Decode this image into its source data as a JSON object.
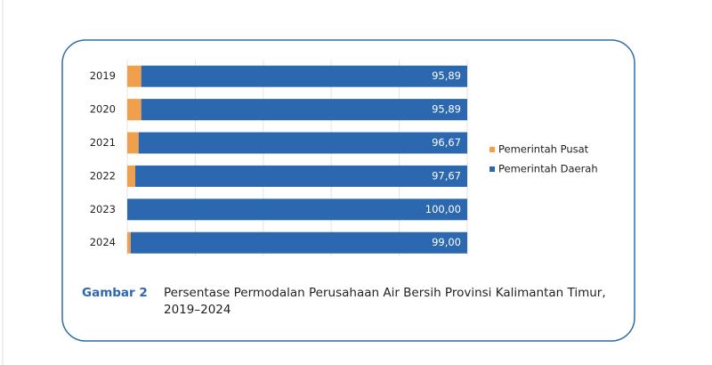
{
  "chart_data": {
    "type": "stacked_barh",
    "categories": [
      "2019",
      "2020",
      "2021",
      "2022",
      "2023",
      "2024"
    ],
    "series": [
      {
        "name": "Pemerintah Pusat",
        "color": "#f0a04b",
        "values": [
          4.11,
          4.11,
          3.33,
          2.33,
          0,
          1.0
        ]
      },
      {
        "name": "Pemerintah Daerah",
        "color": "#2b68b0",
        "values": [
          95.89,
          95.89,
          96.67,
          97.67,
          100.0,
          99.0
        ],
        "value_labels": [
          "95,89",
          "95,89",
          "96,67",
          "97,67",
          "100,00",
          "99,00"
        ]
      }
    ],
    "xlim": [
      0,
      100
    ],
    "xticks": [
      0,
      20,
      40,
      60,
      80,
      100
    ],
    "grid": true,
    "legend": "right",
    "caption_label": "Gambar 2",
    "caption": "Persentase Permodalan Perusahaan Air Bersih Provinsi Kalimantan Timur, 2019–2024"
  }
}
